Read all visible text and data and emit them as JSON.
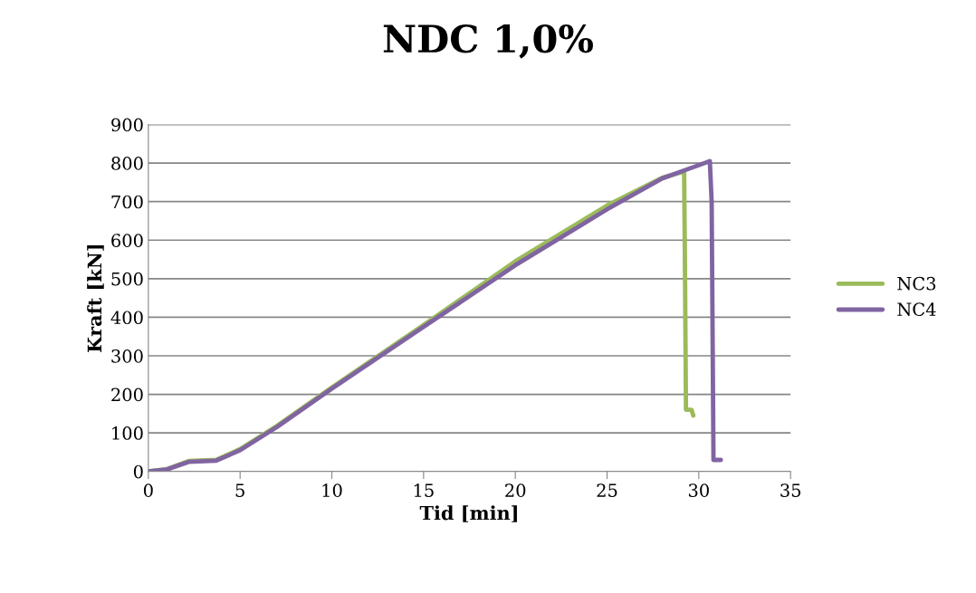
{
  "chart_data": {
    "type": "line",
    "title": "NDC 1,0%",
    "xlabel": "Tid [min]",
    "ylabel": "Kraft [kN]",
    "xlim": [
      0,
      35
    ],
    "xticks": [
      0,
      5,
      10,
      15,
      20,
      25,
      30,
      35
    ],
    "ylim": [
      0,
      900
    ],
    "yticks": [
      0,
      100,
      200,
      300,
      400,
      500,
      600,
      700,
      800,
      900
    ],
    "grid": "y",
    "legend": "right",
    "marker": "none",
    "line_style": "solid",
    "series": [
      {
        "name": "NC3",
        "color": "#9bbb59",
        "x": [
          0,
          1,
          2.2,
          3.7,
          5,
          7,
          10,
          15,
          20,
          25,
          28,
          29.2,
          29.25,
          29.3,
          29.6,
          29.7
        ],
        "values": [
          0,
          6,
          27,
          30,
          58,
          118,
          218,
          380,
          545,
          690,
          762,
          778,
          500,
          160,
          160,
          145
        ]
      },
      {
        "name": "NC4",
        "color": "#8064a2",
        "x": [
          0,
          1,
          2.2,
          3.7,
          5,
          7,
          10,
          15,
          20,
          25,
          28,
          30.6,
          30.7,
          30.8,
          31.2
        ],
        "values": [
          0,
          5,
          25,
          28,
          55,
          115,
          215,
          375,
          535,
          680,
          760,
          805,
          700,
          30,
          30
        ]
      }
    ]
  }
}
